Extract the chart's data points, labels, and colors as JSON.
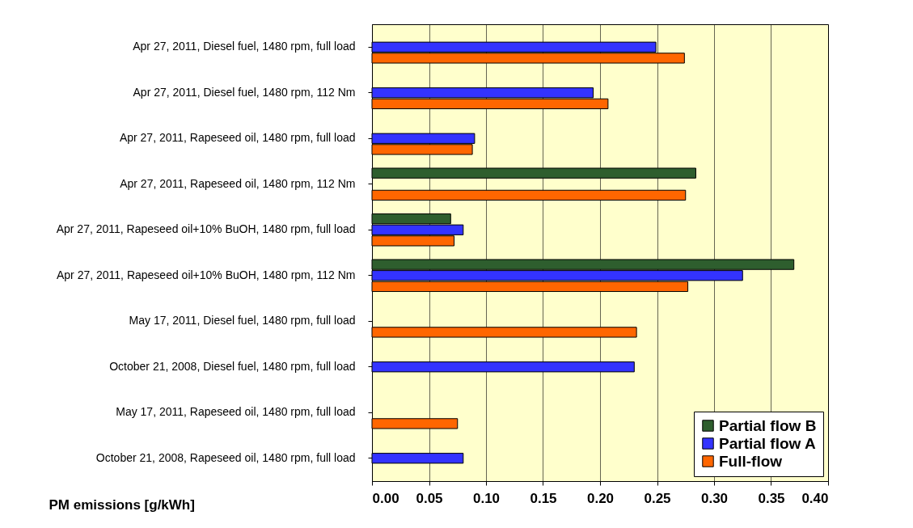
{
  "chart_data": {
    "type": "bar",
    "orientation": "horizontal",
    "xlabel": "PM emissions [g/kWh]",
    "categories": [
      "Apr 27, 2011, Diesel fuel, 1480 rpm, full load",
      "Apr 27, 2011, Diesel fuel, 1480 rpm, 112 Nm",
      "Apr 27, 2011, Rapeseed oil, 1480 rpm, full load",
      "Apr 27, 2011, Rapeseed oil, 1480 rpm, 112 Nm",
      "Apr 27, 2011, Rapeseed oil+10% BuOH, 1480 rpm, full load",
      "Apr 27, 2011, Rapeseed oil+10% BuOH, 1480 rpm, 112 Nm",
      "May 17, 2011, Diesel fuel, 1480 rpm, full load",
      "October 21, 2008, Diesel fuel, 1480 rpm, full load",
      "May 17, 2011, Rapeseed oil, 1480 rpm, full load",
      "October 21, 2008, Rapeseed oil, 1480 rpm, full load"
    ],
    "series": [
      {
        "name": "Partial flow B",
        "color": "#2e5e2e",
        "values": [
          null,
          null,
          null,
          0.284,
          0.069,
          0.37,
          null,
          null,
          null,
          null
        ]
      },
      {
        "name": "Partial flow A",
        "color": "#3333ff",
        "values": [
          0.249,
          0.194,
          0.09,
          null,
          0.08,
          0.325,
          null,
          0.23,
          null,
          0.08
        ]
      },
      {
        "name": "Full-flow",
        "color": "#ff6600",
        "values": [
          0.274,
          0.207,
          0.088,
          0.275,
          0.072,
          0.277,
          0.232,
          null,
          0.075,
          null
        ]
      }
    ],
    "xlim": [
      0,
      0.4
    ],
    "xticks": [
      {
        "value": 0,
        "label": "0.00"
      },
      {
        "value": 0.05,
        "label": "0.05"
      },
      {
        "value": 0.1,
        "label": "0.10"
      },
      {
        "value": 0.15,
        "label": "0.15"
      },
      {
        "value": 0.2,
        "label": "0.20"
      },
      {
        "value": 0.25,
        "label": "0.25"
      },
      {
        "value": 0.3,
        "label": "0.30"
      },
      {
        "value": 0.35,
        "label": "0.35"
      },
      {
        "value": 0.4,
        "label": "0.40"
      }
    ],
    "grid": "x",
    "legend": "bottom right"
  }
}
